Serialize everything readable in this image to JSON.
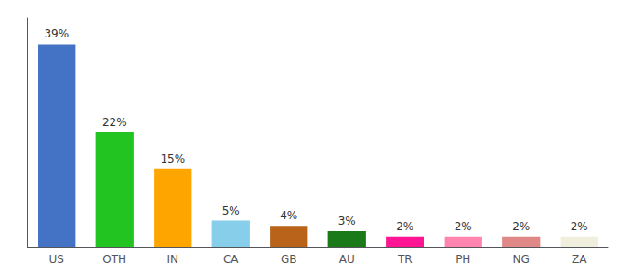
{
  "chart_data": {
    "type": "bar",
    "categories": [
      "US",
      "OTH",
      "IN",
      "CA",
      "GB",
      "AU",
      "TR",
      "PH",
      "NG",
      "ZA"
    ],
    "values": [
      39,
      22,
      15,
      5,
      4,
      3,
      2,
      2,
      2,
      2
    ],
    "value_labels": [
      "39%",
      "22%",
      "15%",
      "5%",
      "4%",
      "3%",
      "2%",
      "2%",
      "2%",
      "2%"
    ],
    "colors": [
      "#4472c4",
      "#21c421",
      "#ffa500",
      "#87ceeb",
      "#b8621a",
      "#1a7a1a",
      "#ff1493",
      "#ff85b0",
      "#e08888",
      "#f0eedc"
    ],
    "ylim": [
      0,
      44
    ],
    "data_labels": true,
    "tick_labels": "x",
    "grid": false
  }
}
